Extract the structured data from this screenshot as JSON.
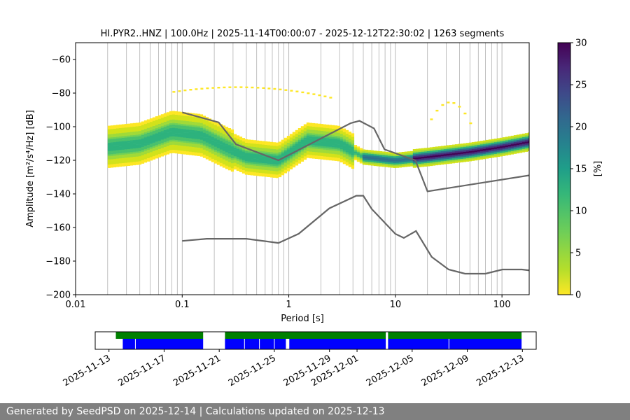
{
  "chart_data": [
    {
      "type": "heatmap",
      "title": "HI.PYR2..HNZ | 100.0Hz | 2025-11-14T00:00:07 - 2025-12-12T22:30:02 | 1263 segments",
      "xlabel": "Period [s]",
      "ylabel": "Amplitude [m²/s⁴/Hz] [dB]",
      "x_scale": "log",
      "xlim": [
        0.01,
        180
      ],
      "ylim": [
        -200,
        -50
      ],
      "x_ticks": [
        "0.01",
        "0.1",
        "1",
        "10",
        "100"
      ],
      "y_ticks": [
        "−60",
        "−80",
        "−100",
        "−120",
        "−140",
        "−160",
        "−180",
        "−200"
      ],
      "grid": true,
      "colorbar": {
        "label": "[%]",
        "range": [
          0,
          30
        ],
        "ticks": [
          "0",
          "5",
          "10",
          "15",
          "20",
          "25",
          "30"
        ],
        "colormap": "viridis_r"
      },
      "density_bands": [
        {
          "period": [
            0.02,
            0.3
          ],
          "center_db": -110,
          "halfwidth_db": 12
        },
        {
          "period": [
            0.3,
            4
          ],
          "center_db": -112,
          "halfwidth_db": 10
        },
        {
          "period": [
            4,
            15
          ],
          "center_db": -118,
          "halfwidth_db": 4
        },
        {
          "period": [
            15,
            180
          ],
          "center_db": -112,
          "halfwidth_db": 5
        }
      ],
      "mode_line": [
        {
          "period": 0.02,
          "db": -112
        },
        {
          "period": 0.04,
          "db": -110
        },
        {
          "period": 0.08,
          "db": -103
        },
        {
          "period": 0.15,
          "db": -105
        },
        {
          "period": 0.25,
          "db": -112
        },
        {
          "period": 0.4,
          "db": -118
        },
        {
          "period": 0.8,
          "db": -120
        },
        {
          "period": 1.5,
          "db": -108
        },
        {
          "period": 3,
          "db": -110
        },
        {
          "period": 5,
          "db": -118
        },
        {
          "period": 10,
          "db": -120
        },
        {
          "period": 20,
          "db": -118
        },
        {
          "period": 50,
          "db": -115
        },
        {
          "period": 100,
          "db": -112
        },
        {
          "period": 180,
          "db": -109
        }
      ],
      "series": [
        {
          "name": "NHNM",
          "x": [
            0.1,
            0.22,
            0.32,
            0.8,
            3.8,
            4.6,
            6.3,
            7.9,
            15.4,
            20,
            354.8
          ],
          "values": [
            -91.5,
            -97.4,
            -110.5,
            -120.0,
            -97.9,
            -96.5,
            -101.0,
            -113.5,
            -120.0,
            -138.5,
            -126.0
          ]
        },
        {
          "name": "NLNM",
          "x": [
            0.1,
            0.17,
            0.4,
            0.8,
            1.24,
            2.4,
            4.3,
            5.0,
            6.0,
            10.0,
            12.0,
            15.6,
            21.9,
            31.6,
            45.0,
            70.0,
            101.0,
            154.0,
            328.0
          ],
          "values": [
            -168.0,
            -166.7,
            -166.7,
            -169.2,
            -163.7,
            -148.6,
            -141.1,
            -141.1,
            -149.0,
            -163.8,
            -166.2,
            -162.1,
            -177.5,
            -185.0,
            -187.5,
            -187.5,
            -185.0,
            -185.0,
            -187.5
          ]
        }
      ]
    },
    {
      "type": "bar",
      "x_ticks": [
        "2025-11-13",
        "2025-11-17",
        "2025-11-21",
        "2025-11-25",
        "2025-11-29",
        "2025-12-01",
        "2025-12-05",
        "2025-12-09",
        "2025-12-13"
      ],
      "xlim": [
        "2025-11-12T00:00:00",
        "2025-12-14T00:00:00"
      ],
      "series": [
        {
          "color": "#008000",
          "spans": [
            [
              "2025-11-13T12:00:00",
              "2025-11-19T20:00:00"
            ],
            [
              "2025-11-21T10:00:00",
              "2025-12-03T02:00:00"
            ],
            [
              "2025-12-03T06:00:00",
              "2025-12-12T22:30:00"
            ]
          ]
        },
        {
          "color": "#0000ff",
          "spans": [
            [
              "2025-11-14T00:00:00",
              "2025-11-19T20:00:00"
            ],
            [
              "2025-11-21T10:00:00",
              "2025-11-25T20:00:00"
            ],
            [
              "2025-11-26T02:00:00",
              "2025-12-03T02:00:00"
            ],
            [
              "2025-12-03T06:00:00",
              "2025-12-12T22:30:00"
            ]
          ]
        }
      ],
      "gaps": [
        "2025-11-14T22:00:00",
        "2025-11-22T20:00:00",
        "2025-11-23T22:00:00",
        "2025-11-25T00:00:00",
        "2025-11-26T00:00:00",
        "2025-12-07T16:00:00"
      ]
    }
  ],
  "footer": "Generated by SeedPSD on 2025-12-14 | Calculations updated on 2025-12-13"
}
